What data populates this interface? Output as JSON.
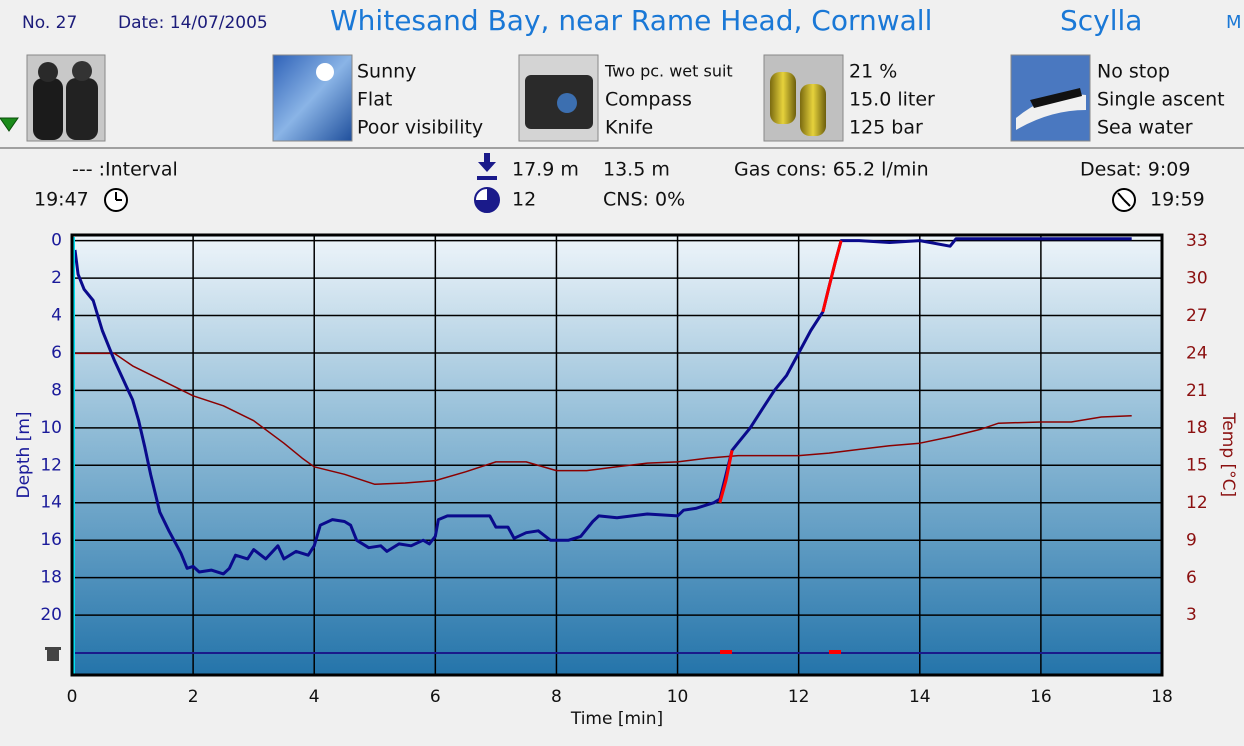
{
  "header": {
    "number": "No. 27",
    "date": "Date: 14/07/2005",
    "site": "Whitesand Bay, near Rame Head, Cornwall",
    "buddy": "Scylla",
    "extra": "M"
  },
  "gear": {
    "conditions": [
      "Sunny",
      "Flat",
      "Poor visibility"
    ],
    "equipment": [
      "Two pc. wet suit",
      "Compass",
      "Knife"
    ],
    "tank": [
      "21 %",
      "15.0 liter",
      "125 bar"
    ],
    "dive": [
      "No stop",
      "Single ascent",
      "Sea water"
    ]
  },
  "stats": {
    "interval": "--- :Interval",
    "start_time": "19:47",
    "max_depth": "17.9 m",
    "avg_depth": "13.5 m",
    "duration": "12",
    "cns": "CNS:  0%",
    "gas_cons": "Gas cons: 65.2 l/min",
    "desat": "Desat:  9:09",
    "end_time": "19:59"
  },
  "chart_data": {
    "type": "line",
    "x_label": "Time [min]",
    "y_label": "Depth [m]",
    "y2_label": "Temp [°C]",
    "xlim": [
      0,
      18
    ],
    "xticks": [
      0,
      2,
      4,
      6,
      8,
      10,
      12,
      14,
      16,
      18
    ],
    "ylim": [
      23.2,
      -0.3
    ],
    "yticks": [
      0,
      2,
      4,
      6,
      8,
      10,
      12,
      14,
      16,
      18,
      20
    ],
    "y2lim": [
      -1.8,
      33.5
    ],
    "y2ticks": [
      3,
      6,
      9,
      12,
      15,
      18,
      21,
      24,
      27,
      30,
      33
    ],
    "grid": true,
    "series": [
      {
        "color": "#0a0a8c",
        "x": [
          0.05,
          0.1,
          0.2,
          0.35,
          0.5,
          0.7,
          0.9,
          1.0,
          1.1,
          1.2,
          1.3,
          1.45,
          1.6,
          1.8,
          1.9,
          2.0,
          2.1,
          2.3,
          2.5,
          2.6,
          2.7,
          2.9,
          3.0,
          3.2,
          3.4,
          3.5,
          3.7,
          3.9,
          4.0,
          4.1,
          4.3,
          4.5,
          4.6,
          4.7,
          4.9,
          5.1,
          5.2,
          5.4,
          5.6,
          5.8,
          5.9,
          6.0,
          6.05,
          6.2,
          6.5,
          6.9,
          7.0,
          7.2,
          7.3,
          7.5,
          7.7,
          7.9,
          8.2,
          8.4,
          8.6,
          8.7,
          9.0,
          9.5,
          10.0,
          10.1,
          10.3,
          10.6,
          10.7,
          10.9,
          11.0,
          11.2,
          11.4,
          11.6,
          11.8,
          12.0,
          12.2,
          12.4,
          12.5,
          12.6,
          12.7,
          13.0,
          13.5,
          14.0,
          14.5,
          14.6,
          15.0,
          17.5
        ],
        "values": [
          0.5,
          1.8,
          2.6,
          3.2,
          4.8,
          6.4,
          7.8,
          8.5,
          9.6,
          11.0,
          12.5,
          14.5,
          15.5,
          16.7,
          17.5,
          17.4,
          17.7,
          17.6,
          17.8,
          17.5,
          16.8,
          17.0,
          16.5,
          17.0,
          16.3,
          17.0,
          16.6,
          16.8,
          16.3,
          15.2,
          14.9,
          15.0,
          15.2,
          16.0,
          16.4,
          16.3,
          16.6,
          16.2,
          16.3,
          16.0,
          16.2,
          15.8,
          14.9,
          14.7,
          14.7,
          14.7,
          15.3,
          15.3,
          15.9,
          15.6,
          15.5,
          16.0,
          16.0,
          15.8,
          15.0,
          14.7,
          14.8,
          14.6,
          14.7,
          14.4,
          14.3,
          14.0,
          13.8,
          11.2,
          10.8,
          10.0,
          9.0,
          8.0,
          7.2,
          6.0,
          4.8,
          3.8,
          2.5,
          1.2,
          0.0,
          0.0,
          0.1,
          0.0,
          0.3,
          -0.1,
          -0.1,
          -0.1
        ]
      },
      {
        "color": "#ff0000",
        "x": [
          10.7,
          10.8,
          10.9,
          11.5,
          12.4,
          12.5,
          12.6,
          12.7
        ],
        "values": [
          14.0,
          12.8,
          11.2,
          null,
          3.8,
          2.5,
          1.2,
          0.0
        ]
      },
      {
        "color": "#8b0000",
        "axis": "y2",
        "x": [
          0.0,
          0.7,
          1.0,
          1.5,
          2.0,
          2.5,
          3.0,
          3.5,
          3.8,
          4.0,
          4.5,
          5.0,
          5.5,
          6.0,
          6.5,
          7.0,
          7.5,
          8.0,
          8.5,
          9.0,
          9.5,
          10.0,
          10.5,
          11.0,
          12.0,
          12.5,
          13.0,
          13.5,
          14.0,
          14.5,
          15.0,
          15.3,
          16.0,
          16.5,
          17.0,
          17.5
        ],
        "values": [
          24.0,
          24.0,
          23.0,
          21.8,
          20.6,
          19.8,
          18.6,
          16.8,
          15.6,
          14.9,
          14.3,
          13.5,
          13.6,
          13.8,
          14.5,
          15.3,
          15.3,
          14.6,
          14.6,
          14.9,
          15.2,
          15.3,
          15.6,
          15.8,
          15.8,
          16.0,
          16.3,
          16.6,
          16.8,
          17.3,
          17.9,
          18.4,
          18.5,
          18.5,
          18.9,
          19.0
        ]
      }
    ],
    "events": {
      "color": "#ff0000",
      "x": [
        10.8,
        12.6
      ]
    }
  }
}
